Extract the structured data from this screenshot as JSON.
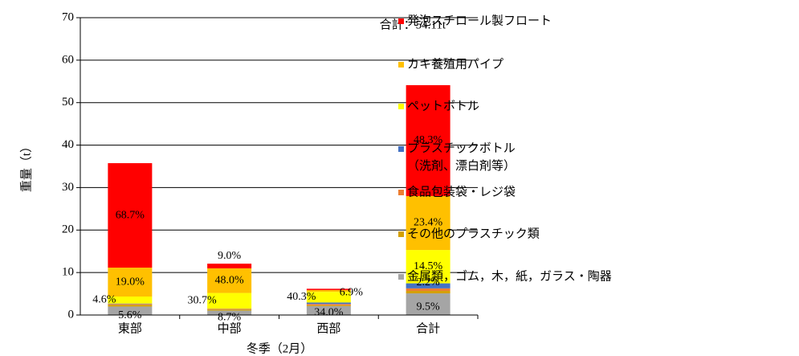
{
  "chart_data": {
    "type": "stacked_bar",
    "annotation": "合計：54.11t",
    "ylabel": "重量（t）",
    "xlabel": "冬季（2月）",
    "categories": [
      "東部",
      "中部",
      "西部",
      "合計"
    ],
    "ylim": [
      0,
      70
    ],
    "yticks": [
      0,
      10,
      20,
      30,
      40,
      50,
      60,
      70
    ],
    "grid": true,
    "legend": "right",
    "series": [
      {
        "name": "金属類，ゴム，木，紙，ガラス・陶器",
        "color": "#a5a5a5",
        "values": [
          2.0,
          1.05,
          2.1,
          5.1
        ],
        "share_labels": [
          "5.6%",
          "8.7%",
          "34.0%",
          "9.5%"
        ]
      },
      {
        "name": "その他のプラスチック類",
        "color": "#d4a000",
        "values": [
          0.4,
          0.25,
          0.2,
          0.57
        ],
        "share_labels": [
          null,
          null,
          null,
          null
        ]
      },
      {
        "name": "食品包装袋・レジ袋",
        "color": "#ed7d31",
        "values": [
          0.2,
          0.15,
          0.3,
          0.6
        ],
        "share_labels": [
          null,
          null,
          null,
          null
        ]
      },
      {
        "name": "プラスチックボトル（洗剤、漂白剤等）",
        "color": "#4472c4",
        "values": [
          0.1,
          0.04,
          0.35,
          1.19
        ],
        "share_labels": [
          null,
          null,
          null,
          "2.2%"
        ]
      },
      {
        "name": "ペットボトル",
        "color": "#ffff00",
        "values": [
          1.65,
          3.7,
          2.5,
          7.85
        ],
        "share_labels": [
          "4.6%",
          "30.7%",
          "40.3%",
          "14.5%"
        ]
      },
      {
        "name": "カキ養殖用パイプ",
        "color": "#ffc000",
        "values": [
          6.8,
          5.8,
          0.43,
          12.7
        ],
        "share_labels": [
          "19.0%",
          "48.0%",
          "6.9%",
          "23.4%"
        ]
      },
      {
        "name": "発泡スチロール製フロート",
        "color": "#ff0000",
        "values": [
          24.6,
          1.1,
          0.3,
          26.1
        ],
        "share_labels": [
          "68.7%",
          "9.0%",
          null,
          "48.3%"
        ]
      }
    ]
  }
}
